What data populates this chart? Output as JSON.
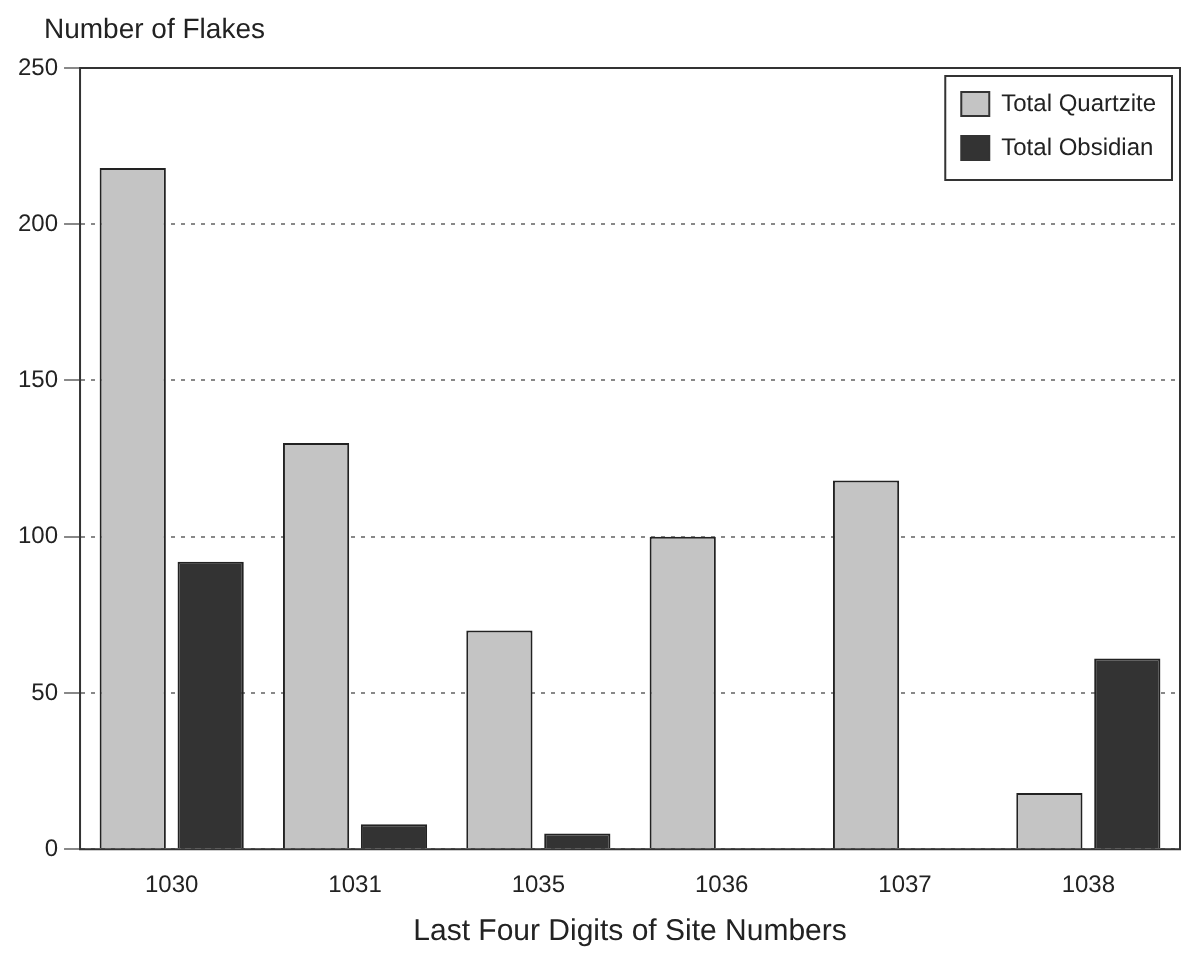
{
  "chart_data": {
    "type": "bar",
    "ylabel": "Number of Flakes",
    "xlabel": "Last Four Digits of Site Numbers",
    "categories": [
      "1030",
      "1031",
      "1035",
      "1036",
      "1037",
      "1038"
    ],
    "series": [
      {
        "name": "Total Quartzite",
        "color": "#c4c4c4",
        "values": [
          218,
          130,
          70,
          100,
          118,
          18
        ]
      },
      {
        "name": "Total Obsidian",
        "color": "#333333",
        "values": [
          92,
          8,
          5,
          0,
          0,
          61
        ]
      }
    ],
    "ylim": [
      0,
      250
    ],
    "yticks": [
      0,
      50,
      100,
      150,
      200,
      250
    ],
    "grid": "y",
    "legend": "top right"
  }
}
